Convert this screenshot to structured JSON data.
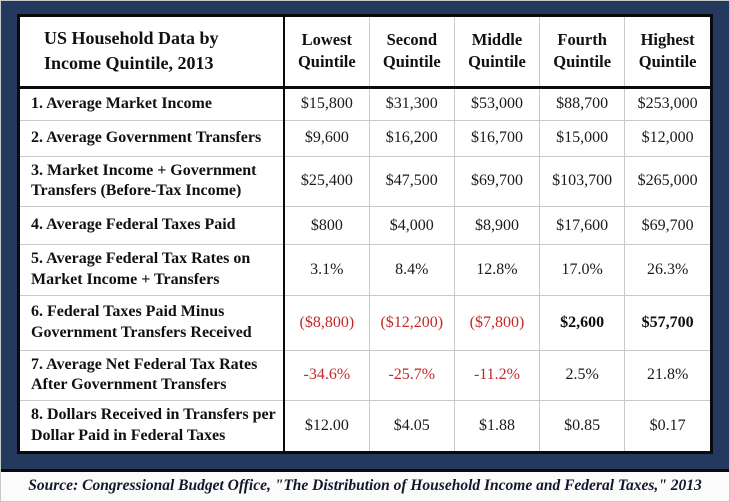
{
  "colors": {
    "frame_navy": "#24395e",
    "negative_red": "#c32828",
    "border_black": "#0a0a0a",
    "grid_gray": "#c9c9c9"
  },
  "chart_data": {
    "type": "table",
    "title_line1": "US Household Data by",
    "title_line2": "Income Quintile, 2013",
    "title": "US Household Data by Income Quintile, 2013",
    "columns": [
      "Lowest Quintile",
      "Second Quintile",
      "Middle Quintile",
      "Fourth Quintile",
      "Highest Quintile"
    ],
    "rows": [
      {
        "label": "1. Average Market Income",
        "values": [
          "$15,800",
          "$31,300",
          "$53,000",
          "$88,700",
          "$253,000"
        ],
        "styles": [
          "",
          "",
          "",
          "",
          ""
        ]
      },
      {
        "label": "2. Average Government Transfers",
        "values": [
          "$9,600",
          "$16,200",
          "$16,700",
          "$15,000",
          "$12,000"
        ],
        "styles": [
          "",
          "",
          "",
          "",
          ""
        ]
      },
      {
        "label": "3. Market Income + Government Transfers (Before-Tax Income)",
        "values": [
          "$25,400",
          "$47,500",
          "$69,700",
          "$103,700",
          "$265,000"
        ],
        "styles": [
          "",
          "",
          "",
          "",
          ""
        ]
      },
      {
        "label": "4. Average Federal Taxes Paid",
        "values": [
          "$800",
          "$4,000",
          "$8,900",
          "$17,600",
          "$69,700"
        ],
        "styles": [
          "",
          "",
          "",
          "",
          ""
        ]
      },
      {
        "label": "5. Average Federal Tax Rates on Market Income + Transfers",
        "values": [
          "3.1%",
          "8.4%",
          "12.8%",
          "17.0%",
          "26.3%"
        ],
        "styles": [
          "",
          "",
          "",
          "",
          ""
        ]
      },
      {
        "label": "6. Federal Taxes Paid Minus Government Transfers Received",
        "values": [
          "($8,800)",
          "($12,200)",
          "($7,800)",
          "$2,600",
          "$57,700"
        ],
        "styles": [
          "red",
          "red",
          "red",
          "bold",
          "bold"
        ]
      },
      {
        "label": "7. Average Net Federal Tax Rates After Government Transfers",
        "values": [
          "-34.6%",
          "-25.7%",
          "-11.2%",
          "2.5%",
          "21.8%"
        ],
        "styles": [
          "red",
          "red",
          "red",
          "",
          ""
        ]
      },
      {
        "label": "8. Dollars Received in Transfers per Dollar Paid in Federal Taxes",
        "values": [
          "$12.00",
          "$4.05",
          "$1.88",
          "$0.85",
          "$0.17"
        ],
        "styles": [
          "",
          "",
          "",
          "",
          ""
        ]
      }
    ],
    "source": "Source: Congressional Budget Office, \"The Distribution of Household Income and Federal Taxes,\" 2013",
    "notes": "Negative values shown in red; net positive taxpayer values in rows 6 shown bold"
  }
}
